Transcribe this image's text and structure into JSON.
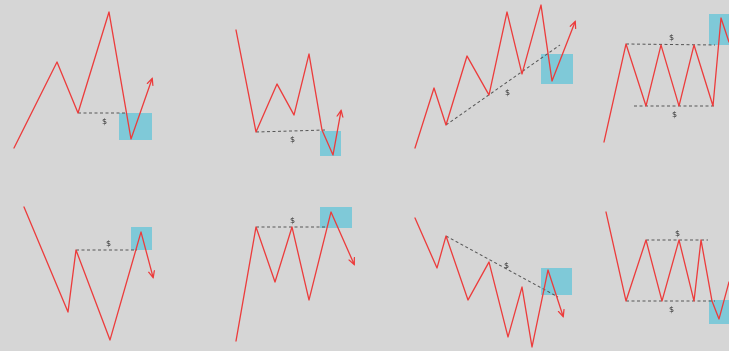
{
  "liquidity_symbol": "$",
  "colors": {
    "background": "#d6d6d6",
    "price_line": "#ec3b3b",
    "zone": "#7fc9d8",
    "level_line": "#555555"
  },
  "panels": [
    {
      "id": "p1",
      "symbols": [
        "$"
      ]
    },
    {
      "id": "p2",
      "symbols": [
        "$"
      ]
    },
    {
      "id": "p3",
      "symbols": [
        "$"
      ]
    },
    {
      "id": "p4",
      "symbols": [
        "$"
      ]
    },
    {
      "id": "p5",
      "symbols": [
        "$"
      ]
    },
    {
      "id": "p6",
      "symbols": [
        "$"
      ]
    },
    {
      "id": "p7",
      "symbols": [
        "$"
      ]
    },
    {
      "id": "p8",
      "symbols": [
        "$",
        "$"
      ]
    }
  ]
}
